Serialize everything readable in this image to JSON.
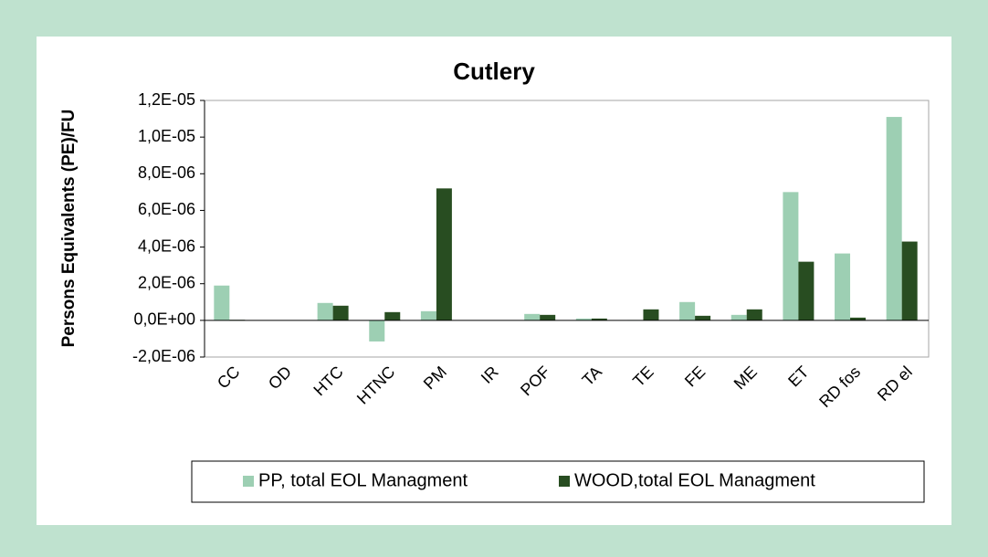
{
  "chart_data": {
    "type": "bar",
    "title": "Cutlery",
    "y_axis_label": "Persons Equivalents (PE)/FU",
    "categories": [
      "CC",
      "OD",
      "HTC",
      "HTNC",
      "PM",
      "IR",
      "POF",
      "TA",
      "TE",
      "FE",
      "ME",
      "ET",
      "RD fos",
      "RD el"
    ],
    "series": [
      {
        "name": "PP, total EOL Managment",
        "color": "#9dcfb3",
        "values": [
          1.9e-06,
          0,
          9.5e-07,
          -1.15e-06,
          5e-07,
          0,
          3.5e-07,
          1e-07,
          2e-08,
          1e-06,
          3e-07,
          7e-06,
          3.65e-06,
          1.11e-05
        ]
      },
      {
        "name": "WOOD,total  EOL Managment",
        "color": "#284d21",
        "values": [
          3e-08,
          0,
          8e-07,
          4.5e-07,
          7.2e-06,
          0,
          3e-07,
          1e-07,
          6e-07,
          2.5e-07,
          6e-07,
          3.2e-06,
          1.5e-07,
          4.3e-06
        ]
      }
    ],
    "ylim": [
      -2e-06,
      1.2e-05
    ],
    "yticks": [
      {
        "value": -2e-06,
        "label": "-2,0E-06"
      },
      {
        "value": 0,
        "label": "0,0E+00"
      },
      {
        "value": 2e-06,
        "label": "2,0E-06"
      },
      {
        "value": 4e-06,
        "label": "4,0E-06"
      },
      {
        "value": 6e-06,
        "label": "6,0E-06"
      },
      {
        "value": 8e-06,
        "label": "8,0E-06"
      },
      {
        "value": 1e-05,
        "label": "1,0E-05"
      },
      {
        "value": 1.2e-05,
        "label": "1,2E-05"
      }
    ],
    "grid": false,
    "legend": "bottom"
  }
}
